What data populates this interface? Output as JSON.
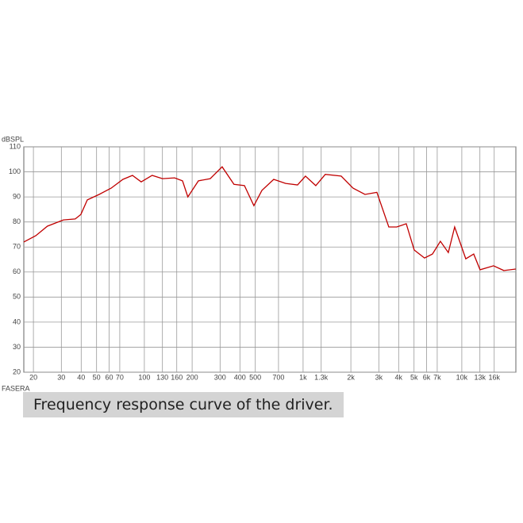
{
  "chart_data": {
    "type": "line",
    "ylabel": "dBSPL",
    "note": "FASERA",
    "caption": "Frequency response curve of the driver.",
    "log_x": true,
    "grid": true,
    "xlim": [
      17.4,
      21900
    ],
    "ylim": [
      20,
      110
    ],
    "yticks": [
      20,
      30,
      40,
      50,
      60,
      70,
      80,
      90,
      100,
      110
    ],
    "xticks": [
      20,
      30,
      40,
      50,
      60,
      70,
      100,
      130,
      160,
      200,
      300,
      400,
      500,
      700,
      {
        "value": 1000,
        "label": "1k"
      },
      {
        "value": 1300,
        "label": "1.3k"
      },
      {
        "value": 2000,
        "label": "2k"
      },
      {
        "value": 3000,
        "label": "3k"
      },
      {
        "value": 4000,
        "label": "4k"
      },
      {
        "value": 5000,
        "label": "5k"
      },
      {
        "value": 6000,
        "label": "6k"
      },
      {
        "value": 7000,
        "label": "7k"
      },
      {
        "value": 10000,
        "label": "10k"
      },
      {
        "value": 13000,
        "label": "13k"
      },
      {
        "value": 16000,
        "label": "16k"
      }
    ],
    "x": [
      17.4,
      20.7,
      24.5,
      30.9,
      36.7,
      39.8,
      43.7,
      51.9,
      61.7,
      73.3,
      84.1,
      95.5,
      112,
      130,
      155,
      174,
      188,
      219,
      260,
      309,
      367,
      427,
      490,
      550,
      653,
      776,
      923,
      1035,
      1202,
      1380,
      1738,
      2065,
      2455,
      2917,
      3467,
      3890,
      4467,
      5012,
      5821,
      6531,
      7328,
      8222,
      9016,
      10593,
      11885,
      13032,
      15849,
      18408,
      21878
    ],
    "series": [
      {
        "color": "#c00000",
        "values": [
          72,
          74.5,
          78.3,
          80.8,
          81.2,
          83,
          88.8,
          91,
          93.5,
          97,
          98.6,
          96,
          98.6,
          97.3,
          97.6,
          96.4,
          90,
          96.4,
          97.3,
          102,
          95,
          94.5,
          86.5,
          92.6,
          97,
          95.4,
          94.8,
          98.3,
          94.5,
          99,
          98.3,
          93.5,
          91,
          91.8,
          78,
          78,
          79.3,
          68.8,
          65.6,
          67.2,
          72.3,
          67.8,
          78,
          65.3,
          67.2,
          60.9,
          62.5,
          60.6,
          61.2
        ]
      }
    ]
  }
}
